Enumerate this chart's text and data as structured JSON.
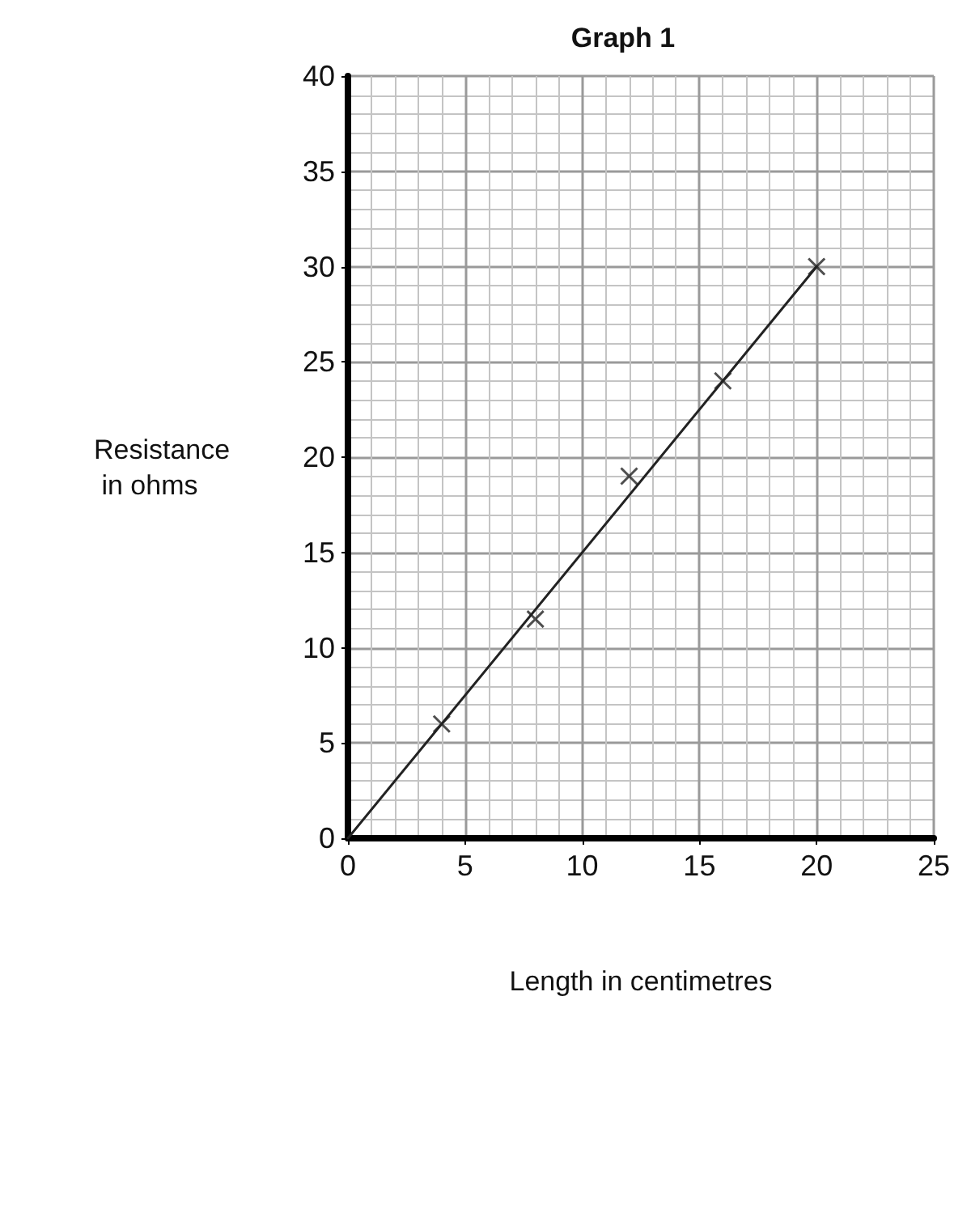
{
  "chart_data": {
    "type": "scatter",
    "title": "Graph 1",
    "xlabel": "Length in centimetres",
    "ylabel": "Resistance in ohms",
    "series": [
      {
        "color": "#222222",
        "x": [
          4,
          8,
          12,
          16,
          20
        ],
        "values": [
          6,
          11.5,
          19,
          24,
          30
        ],
        "marker": "cross"
      },
      {
        "type": "line",
        "color": "#222222",
        "x": [
          0,
          20
        ],
        "values": [
          0,
          30
        ],
        "marker": "none",
        "line_style": "solid"
      }
    ],
    "xlim": [
      0,
      25
    ],
    "xticks": [
      0,
      5,
      10,
      15,
      20,
      25
    ],
    "ylim": [
      0,
      40
    ],
    "yticks": [
      0,
      5,
      10,
      15,
      20,
      25,
      30,
      35,
      40
    ],
    "grid": true
  }
}
